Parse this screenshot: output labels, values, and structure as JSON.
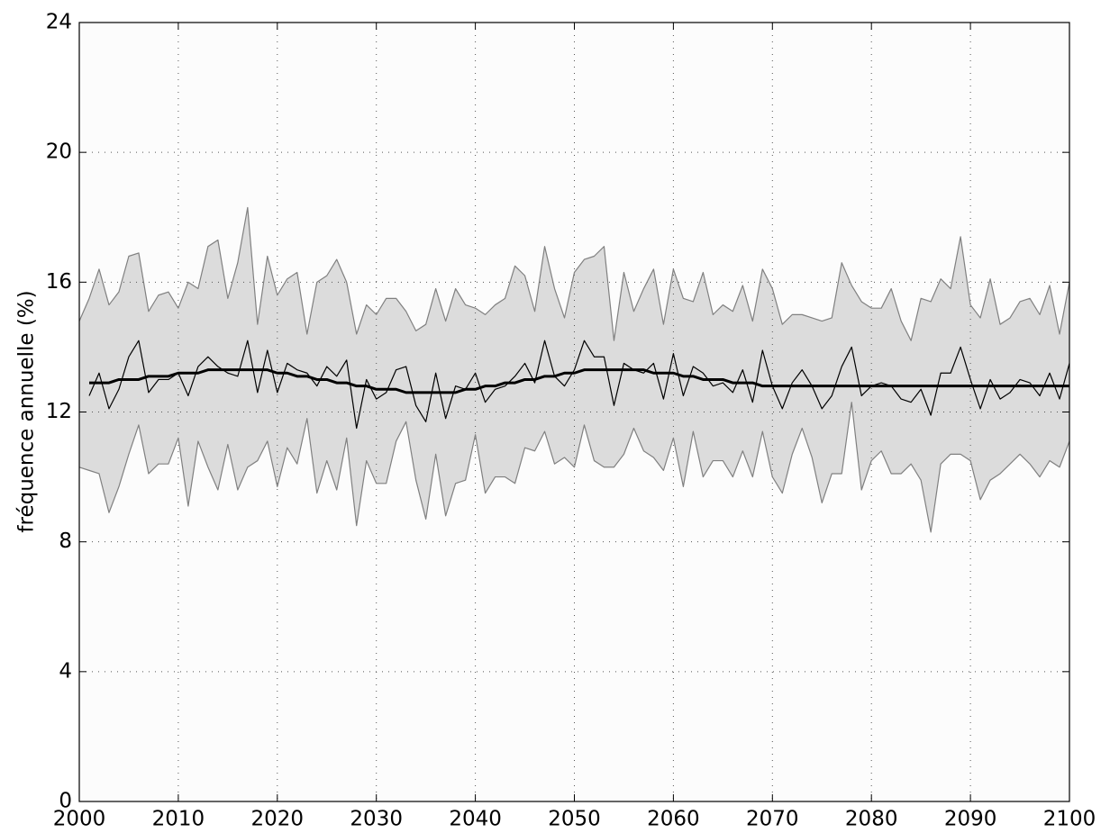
{
  "chart_data": {
    "type": "line",
    "y_label": "fréquence annuelle (%)",
    "x": [
      2000,
      2001,
      2002,
      2003,
      2004,
      2005,
      2006,
      2007,
      2008,
      2009,
      2010,
      2011,
      2012,
      2013,
      2014,
      2015,
      2016,
      2017,
      2018,
      2019,
      2020,
      2021,
      2022,
      2023,
      2024,
      2025,
      2026,
      2027,
      2028,
      2029,
      2030,
      2031,
      2032,
      2033,
      2034,
      2035,
      2036,
      2037,
      2038,
      2039,
      2040,
      2041,
      2042,
      2043,
      2044,
      2045,
      2046,
      2047,
      2048,
      2049,
      2050,
      2051,
      2052,
      2053,
      2054,
      2055,
      2056,
      2057,
      2058,
      2059,
      2060,
      2061,
      2062,
      2063,
      2064,
      2065,
      2066,
      2067,
      2068,
      2069,
      2070,
      2071,
      2072,
      2073,
      2074,
      2075,
      2076,
      2077,
      2078,
      2079,
      2080,
      2081,
      2082,
      2083,
      2084,
      2085,
      2086,
      2087,
      2088,
      2089,
      2090,
      2091,
      2092,
      2093,
      2094,
      2095,
      2096,
      2097,
      2098,
      2099,
      2100
    ],
    "band_fill": "#dcdcdc",
    "series": [
      {
        "color": "#808080",
        "line_width": 1.2,
        "values": [
          14.8,
          15.5,
          16.4,
          15.3,
          15.7,
          16.8,
          16.9,
          15.1,
          15.6,
          15.7,
          15.2,
          16.0,
          15.8,
          17.1,
          17.3,
          15.5,
          16.6,
          18.3,
          14.7,
          16.8,
          15.6,
          16.1,
          16.3,
          14.4,
          16.0,
          16.2,
          16.7,
          16.0,
          14.4,
          15.3,
          15.0,
          15.5,
          15.5,
          15.1,
          14.5,
          14.7,
          15.8,
          14.8,
          15.8,
          15.3,
          15.2,
          15.0,
          15.3,
          15.5,
          16.5,
          16.2,
          15.1,
          17.1,
          15.8,
          14.9,
          16.3,
          16.7,
          16.8,
          17.1,
          14.2,
          16.3,
          15.1,
          15.8,
          16.4,
          14.7,
          16.4,
          15.5,
          15.4,
          16.3,
          15.0,
          15.3,
          15.1,
          15.9,
          14.8,
          16.4,
          15.8,
          14.7,
          15.0,
          15.0,
          14.9,
          14.8,
          14.9,
          16.6,
          15.9,
          15.4,
          15.2,
          15.2,
          15.8,
          14.8,
          14.2,
          15.5,
          15.4,
          16.1,
          15.8,
          17.4,
          15.3,
          14.9,
          16.1,
          14.7,
          14.9,
          15.4,
          15.5,
          15.0,
          15.9,
          14.4,
          16.0
        ]
      },
      {
        "color": "#808080",
        "line_width": 1.2,
        "values": [
          10.3,
          10.2,
          10.1,
          8.9,
          9.7,
          10.7,
          11.6,
          10.1,
          10.4,
          10.4,
          11.2,
          9.1,
          11.1,
          10.3,
          9.6,
          11.0,
          9.6,
          10.3,
          10.5,
          11.1,
          9.7,
          10.9,
          10.4,
          11.8,
          9.5,
          10.5,
          9.6,
          11.2,
          8.5,
          10.5,
          9.8,
          9.8,
          11.1,
          11.7,
          9.9,
          8.7,
          10.7,
          8.8,
          9.8,
          9.9,
          11.3,
          9.5,
          10.0,
          10.0,
          9.8,
          10.9,
          10.8,
          11.4,
          10.4,
          10.6,
          10.3,
          11.6,
          10.5,
          10.3,
          10.3,
          10.7,
          11.5,
          10.8,
          10.6,
          10.2,
          11.2,
          9.7,
          11.4,
          10.0,
          10.5,
          10.5,
          10.0,
          10.8,
          10.0,
          11.4,
          10.0,
          9.5,
          10.7,
          11.5,
          10.6,
          9.2,
          10.1,
          10.1,
          12.3,
          9.6,
          10.5,
          10.8,
          10.1,
          10.1,
          10.4,
          9.9,
          8.3,
          10.4,
          10.7,
          10.7,
          10.5,
          9.3,
          9.9,
          10.1,
          10.4,
          10.7,
          10.4,
          10.0,
          10.5,
          10.3,
          11.1
        ]
      },
      {
        "color": "#000000",
        "line_width": 1.2,
        "values": [
          null,
          12.5,
          13.2,
          12.1,
          12.7,
          13.7,
          14.2,
          12.6,
          13.0,
          13.0,
          13.2,
          12.5,
          13.4,
          13.7,
          13.4,
          13.2,
          13.1,
          14.2,
          12.6,
          13.9,
          12.6,
          13.5,
          13.3,
          13.2,
          12.8,
          13.4,
          13.1,
          13.6,
          11.5,
          13.0,
          12.4,
          12.6,
          13.3,
          13.4,
          12.2,
          11.7,
          13.2,
          11.8,
          12.8,
          12.7,
          13.2,
          12.3,
          12.7,
          12.8,
          13.1,
          13.5,
          12.9,
          14.2,
          13.1,
          12.8,
          13.3,
          14.2,
          13.7,
          13.7,
          12.2,
          13.5,
          13.3,
          13.2,
          13.5,
          12.4,
          13.8,
          12.5,
          13.4,
          13.2,
          12.8,
          12.9,
          12.6,
          13.3,
          12.3,
          13.9,
          12.8,
          12.1,
          12.9,
          13.3,
          12.8,
          12.1,
          12.5,
          13.4,
          14.0,
          12.5,
          12.8,
          12.9,
          12.8,
          12.4,
          12.3,
          12.7,
          11.9,
          13.2,
          13.2,
          14.0,
          13.0,
          12.1,
          13.0,
          12.4,
          12.6,
          13.0,
          12.9,
          12.5,
          13.2,
          12.4,
          13.5
        ]
      },
      {
        "color": "#000000",
        "line_width": 3,
        "values": [
          null,
          12.9,
          12.9,
          12.9,
          13.0,
          13.0,
          13.0,
          13.1,
          13.1,
          13.1,
          13.2,
          13.2,
          13.2,
          13.3,
          13.3,
          13.3,
          13.3,
          13.3,
          13.3,
          13.3,
          13.2,
          13.2,
          13.1,
          13.1,
          13.0,
          13.0,
          12.9,
          12.9,
          12.8,
          12.8,
          12.7,
          12.7,
          12.7,
          12.6,
          12.6,
          12.6,
          12.6,
          12.6,
          12.6,
          12.7,
          12.7,
          12.8,
          12.8,
          12.9,
          12.9,
          13.0,
          13.0,
          13.1,
          13.1,
          13.2,
          13.2,
          13.3,
          13.3,
          13.3,
          13.3,
          13.3,
          13.3,
          13.3,
          13.2,
          13.2,
          13.2,
          13.1,
          13.1,
          13.0,
          13.0,
          13.0,
          12.9,
          12.9,
          12.9,
          12.8,
          12.8,
          12.8,
          12.8,
          12.8,
          12.8,
          12.8,
          12.8,
          12.8,
          12.8,
          12.8,
          12.8,
          12.8,
          12.8,
          12.8,
          12.8,
          12.8,
          12.8,
          12.8,
          12.8,
          12.8,
          12.8,
          12.8,
          12.8,
          12.8,
          12.8,
          12.8,
          12.8,
          12.8,
          12.8,
          12.8,
          12.8
        ]
      }
    ],
    "xlim": [
      2000,
      2100
    ],
    "xticks": [
      2000,
      2010,
      2020,
      2030,
      2040,
      2050,
      2060,
      2070,
      2080,
      2090,
      2100
    ],
    "ylim": [
      0,
      24
    ],
    "yticks": [
      0,
      4,
      8,
      12,
      16,
      20,
      24
    ],
    "grid": true
  }
}
